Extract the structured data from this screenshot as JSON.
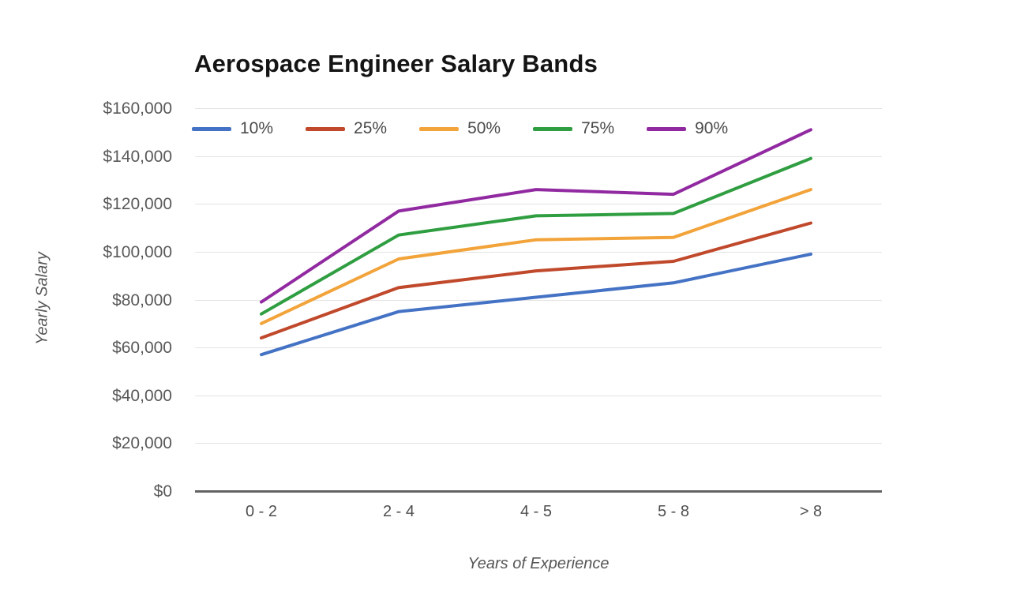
{
  "page": {
    "background": "#ffffff",
    "text_color": "#4f4f4f",
    "grid_color": "#e4e4e4",
    "axis_color": "#636363"
  },
  "chart_data": {
    "type": "line",
    "title": "Aerospace Engineer Salary Bands",
    "xlabel": "Years of Experience",
    "ylabel": "Yearly Salary",
    "categories": [
      "0 - 2",
      "2 - 4",
      "4 - 5",
      "5 - 8",
      "> 8"
    ],
    "series": [
      {
        "name": "10%",
        "color": "#4472c4",
        "values": [
          57000,
          75000,
          81000,
          87000,
          99000
        ]
      },
      {
        "name": "25%",
        "color": "#c0492c",
        "values": [
          64000,
          85000,
          92000,
          96000,
          112000
        ]
      },
      {
        "name": "50%",
        "color": "#f2a33a",
        "values": [
          70000,
          97000,
          105000,
          106000,
          126000
        ]
      },
      {
        "name": "75%",
        "color": "#2f9e41",
        "values": [
          74000,
          107000,
          115000,
          116000,
          139000
        ]
      },
      {
        "name": "90%",
        "color": "#9129a1",
        "values": [
          79000,
          117000,
          126000,
          124000,
          151000
        ]
      }
    ],
    "ylim": [
      0,
      160000
    ],
    "ytick_step": 20000,
    "ytick_labels": [
      "$0",
      "$20,000",
      "$40,000",
      "$60,000",
      "$80,000",
      "$100,000",
      "$120,000",
      "$140,000",
      "$160,000"
    ],
    "grid": true,
    "legend_position": "top"
  }
}
